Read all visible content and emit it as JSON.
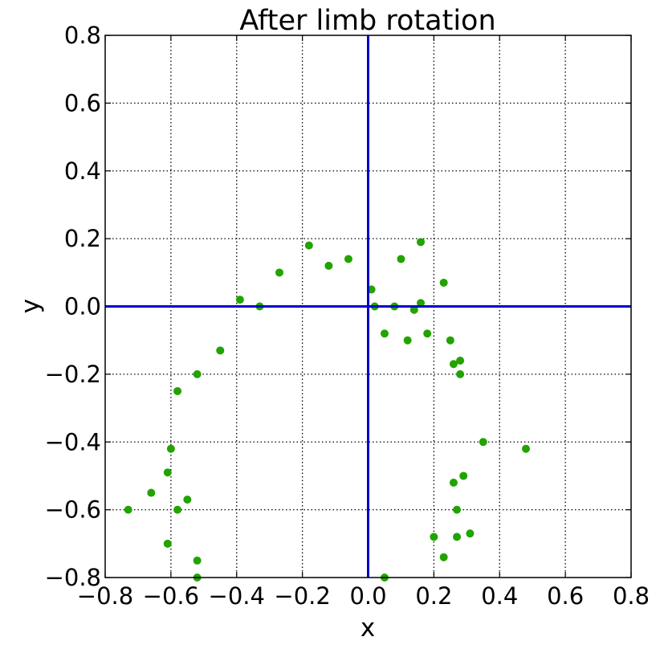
{
  "chart_data": {
    "type": "scatter",
    "title": "After limb rotation",
    "xlabel": "x",
    "ylabel": "y",
    "xlim": [
      -0.8,
      0.8
    ],
    "ylim": [
      -0.8,
      0.8
    ],
    "xticks": [
      -0.8,
      -0.6,
      -0.4,
      -0.2,
      0.0,
      0.2,
      0.4,
      0.6,
      0.8
    ],
    "yticks": [
      -0.8,
      -0.6,
      -0.4,
      -0.2,
      0.0,
      0.2,
      0.4,
      0.6,
      0.8
    ],
    "xtick_labels": [
      "−0.8",
      "−0.6",
      "−0.4",
      "−0.2",
      "0.0",
      "0.2",
      "0.4",
      "0.6",
      "0.8"
    ],
    "ytick_labels": [
      "0.8",
      "0.6",
      "0.4",
      "0.2",
      "0.0",
      "−0.2",
      "−0.4",
      "−0.6",
      "−0.8"
    ],
    "grid": true,
    "grid_style": "dotted",
    "reference_lines": {
      "x": 0.0,
      "y": 0.0,
      "color": "#0000cc"
    },
    "marker_color": "#22a300",
    "series": [
      {
        "points": [
          [
            -0.27,
            0.1
          ],
          [
            -0.18,
            0.18
          ],
          [
            -0.12,
            0.12
          ],
          [
            -0.06,
            0.14
          ],
          [
            0.01,
            0.05
          ],
          [
            0.1,
            0.14
          ],
          [
            0.16,
            0.19
          ],
          [
            0.23,
            0.07
          ],
          [
            -0.39,
            0.02
          ],
          [
            -0.33,
            0.0
          ],
          [
            -0.45,
            -0.13
          ],
          [
            -0.52,
            -0.2
          ],
          [
            -0.58,
            -0.25
          ],
          [
            -0.6,
            -0.42
          ],
          [
            -0.61,
            -0.49
          ],
          [
            -0.55,
            -0.57
          ],
          [
            -0.58,
            -0.6
          ],
          [
            -0.66,
            -0.55
          ],
          [
            -0.73,
            -0.6
          ],
          [
            -0.61,
            -0.7
          ],
          [
            -0.52,
            -0.75
          ],
          [
            -0.52,
            -0.8
          ],
          [
            0.35,
            -0.4
          ],
          [
            0.48,
            -0.42
          ],
          [
            0.31,
            -0.67
          ],
          [
            0.27,
            -0.6
          ],
          [
            0.28,
            -0.2
          ],
          [
            0.28,
            -0.16
          ],
          [
            0.2,
            -0.68
          ],
          [
            0.23,
            -0.74
          ],
          [
            0.05,
            -0.8
          ],
          [
            0.02,
            0.0
          ],
          [
            0.05,
            -0.08
          ],
          [
            0.08,
            0.0
          ],
          [
            0.14,
            -0.01
          ],
          [
            0.16,
            0.01
          ],
          [
            0.18,
            -0.08
          ],
          [
            0.12,
            -0.1
          ],
          [
            0.25,
            -0.1
          ],
          [
            0.26,
            -0.17
          ],
          [
            0.29,
            -0.5
          ],
          [
            0.26,
            -0.52
          ],
          [
            0.27,
            -0.68
          ]
        ]
      }
    ]
  }
}
